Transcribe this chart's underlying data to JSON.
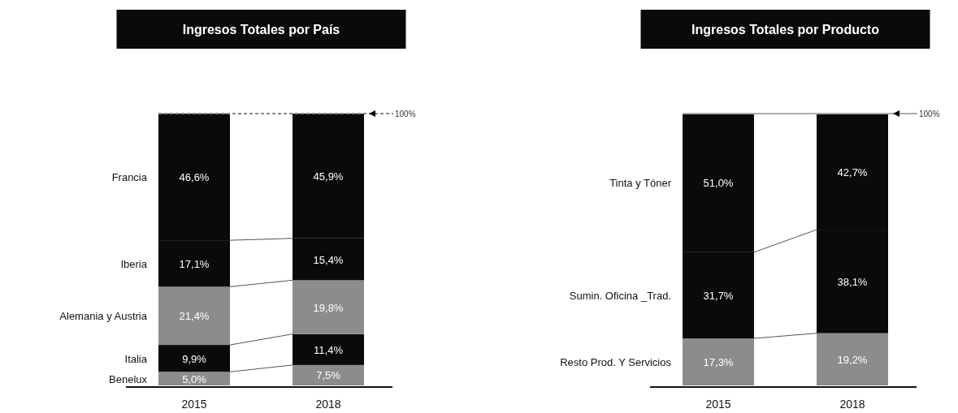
{
  "chart_data": [
    {
      "type": "bar",
      "title": "Ingresos Totales por País",
      "categories": [
        "2015",
        "2018"
      ],
      "stacked": true,
      "ylim": [
        0,
        100
      ],
      "tick_labels": "x",
      "series": [
        {
          "name": "Benelux",
          "color": "#8c8c8c",
          "values": [
            5.0,
            7.5
          ],
          "value_labels": [
            "5,0%",
            "7,5%"
          ]
        },
        {
          "name": "Italia",
          "color": "#0a0a0a",
          "values": [
            9.9,
            11.4
          ],
          "value_labels": [
            "9,9%",
            "11,4%"
          ]
        },
        {
          "name": "Alemania y Austria",
          "color": "#8c8c8c",
          "values": [
            21.4,
            19.8
          ],
          "value_labels": [
            "21,4%",
            "19,8%"
          ]
        },
        {
          "name": "Iberia",
          "color": "#0a0a0a",
          "values": [
            17.1,
            15.4
          ],
          "value_labels": [
            "17,1%",
            "15,4%"
          ]
        },
        {
          "name": "Francia",
          "color": "#0a0a0a",
          "values": [
            46.6,
            45.9
          ],
          "value_labels": [
            "46,6%",
            "45,9%"
          ]
        }
      ],
      "ref_lines": [
        {
          "axis": "y",
          "value": 100,
          "label": "100%",
          "line_style": "dashed",
          "color": "#888888"
        }
      ]
    },
    {
      "type": "bar",
      "title": "Ingresos Totales por Producto",
      "categories": [
        "2015",
        "2018"
      ],
      "stacked": true,
      "ylim": [
        0,
        100
      ],
      "tick_labels": "x",
      "series": [
        {
          "name": "Resto Prod. Y Servicios",
          "color": "#8c8c8c",
          "values": [
            17.3,
            19.2
          ],
          "value_labels": [
            "17,3%",
            "19,2%"
          ]
        },
        {
          "name": "Sumin. Oficina _Trad.",
          "color": "#0a0a0a",
          "values": [
            31.7,
            38.1
          ],
          "value_labels": [
            "31,7%",
            "38,1%"
          ]
        },
        {
          "name": "Tinta y Tóner",
          "color": "#0a0a0a",
          "values": [
            51.0,
            42.7
          ],
          "value_labels": [
            "51,0%",
            "42,7%"
          ]
        }
      ],
      "ref_lines": [
        {
          "axis": "y",
          "value": 100,
          "label": "100%",
          "line_style": "solid",
          "color": "#aaaaaa"
        }
      ]
    }
  ]
}
